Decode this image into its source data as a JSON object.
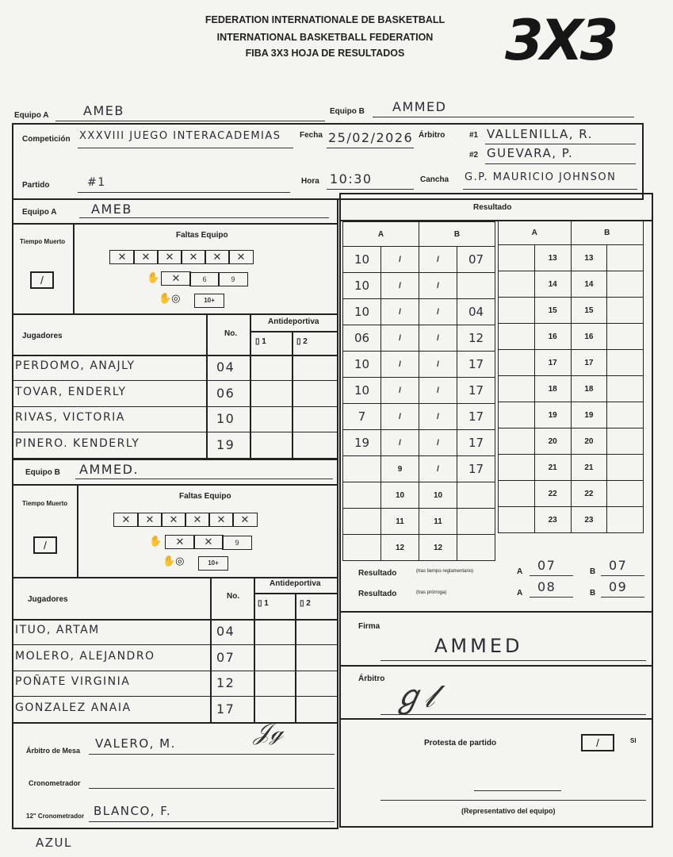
{
  "header": {
    "line1": "FEDERATION INTERNATIONALE DE BASKETBALL",
    "line2": "INTERNATIONAL BASKETBALL FEDERATION",
    "line3": "FIBA 3X3 HOJA DE RESULTADOS",
    "logo": "3X3"
  },
  "labels": {
    "equipo_a": "Equipo A",
    "equipo_b": "Equipo B",
    "competicion": "Competición",
    "fecha": "Fecha",
    "arbitro": "Árbitro",
    "arb1": "#1",
    "arb2": "#2",
    "partido": "Partido",
    "hora": "Hora",
    "cancha": "Cancha",
    "resultado": "Resultado",
    "tiempo_muerto": "Tiempo Muerto",
    "faltas_equipo": "Faltas Equipo",
    "jugadores": "Jugadores",
    "no": "No.",
    "antideportiva": "Antideportiva",
    "anti1": "1",
    "anti2": "2",
    "col_a": "A",
    "col_b": "B",
    "resultado_reg": "Resultado",
    "reg_note": "(tras tiempo reglamentario)",
    "resultado_pro": "Resultado",
    "pro_note": "(tras prórroga)",
    "firma": "Firma",
    "arbitro_firma": "Árbitro",
    "arbitro_mesa": "Árbitro de Mesa",
    "cronometrador": "Cronometrador",
    "crono12": "12\" Cronometrador",
    "protesta": "Protesta de partido",
    "si": "SI",
    "representativo": "(Representativo del equipo)",
    "fouls_6": "6",
    "fouls_9": "9",
    "fouls_10": "10+"
  },
  "match": {
    "equipo_a": "AMEB",
    "equipo_b": "AMMED",
    "competicion": "XXXVIII JUEGO INTERACADEMIAS",
    "fecha": "25/02/2026",
    "arbitro1": "VALLENILLA, R.",
    "arbitro2": "GUEVARA, P.",
    "partido": "#1",
    "hora": "10:30",
    "cancha": "G.P. MAURICIO JOHNSON"
  },
  "team_a": {
    "name": "AMEB",
    "timeout_used": true,
    "fouls_marked": 6,
    "players": [
      {
        "name": "PERDOMO, ANAJLY",
        "no": "04"
      },
      {
        "name": "TOVAR, ENDERLY",
        "no": "06"
      },
      {
        "name": "RIVAS, VICTORIA",
        "no": "10"
      },
      {
        "name": "PINERO. KENDERLY",
        "no": "19"
      }
    ]
  },
  "team_b": {
    "name": "AMMED.",
    "timeout_used": true,
    "fouls_marked": 6,
    "players": [
      {
        "name": "ITUO, ARTAM",
        "no": "04"
      },
      {
        "name": "MOLERO, ALEJANDRO",
        "no": "07"
      },
      {
        "name": "POÑATE VIRGINIA",
        "no": "12"
      },
      {
        "name": "GONZALEZ ANAIA",
        "no": "17"
      }
    ]
  },
  "running_score": {
    "a_players": [
      "10",
      "10",
      "10",
      "06",
      "10",
      "10",
      "7",
      "19",
      "",
      "",
      "",
      ""
    ],
    "b_players": [
      "07",
      "",
      "04",
      "12",
      "17",
      "17",
      "17",
      "17",
      "17",
      "",
      "",
      ""
    ],
    "a_scored_upto": 8,
    "b_scored_upto": 9,
    "extra_points": [
      "13",
      "14",
      "15",
      "16",
      "17",
      "18",
      "19",
      "20",
      "21",
      "22",
      "23"
    ]
  },
  "result": {
    "reg_a": "07",
    "reg_b": "07",
    "pro_a": "08",
    "pro_b": "09"
  },
  "officials": {
    "firma": "AMMED",
    "arbitro_mesa": "VALERO, M.",
    "cronometrador": "",
    "crono12": "BLANCO, F.",
    "protesta_si": true
  },
  "footer_note": "AZUL"
}
